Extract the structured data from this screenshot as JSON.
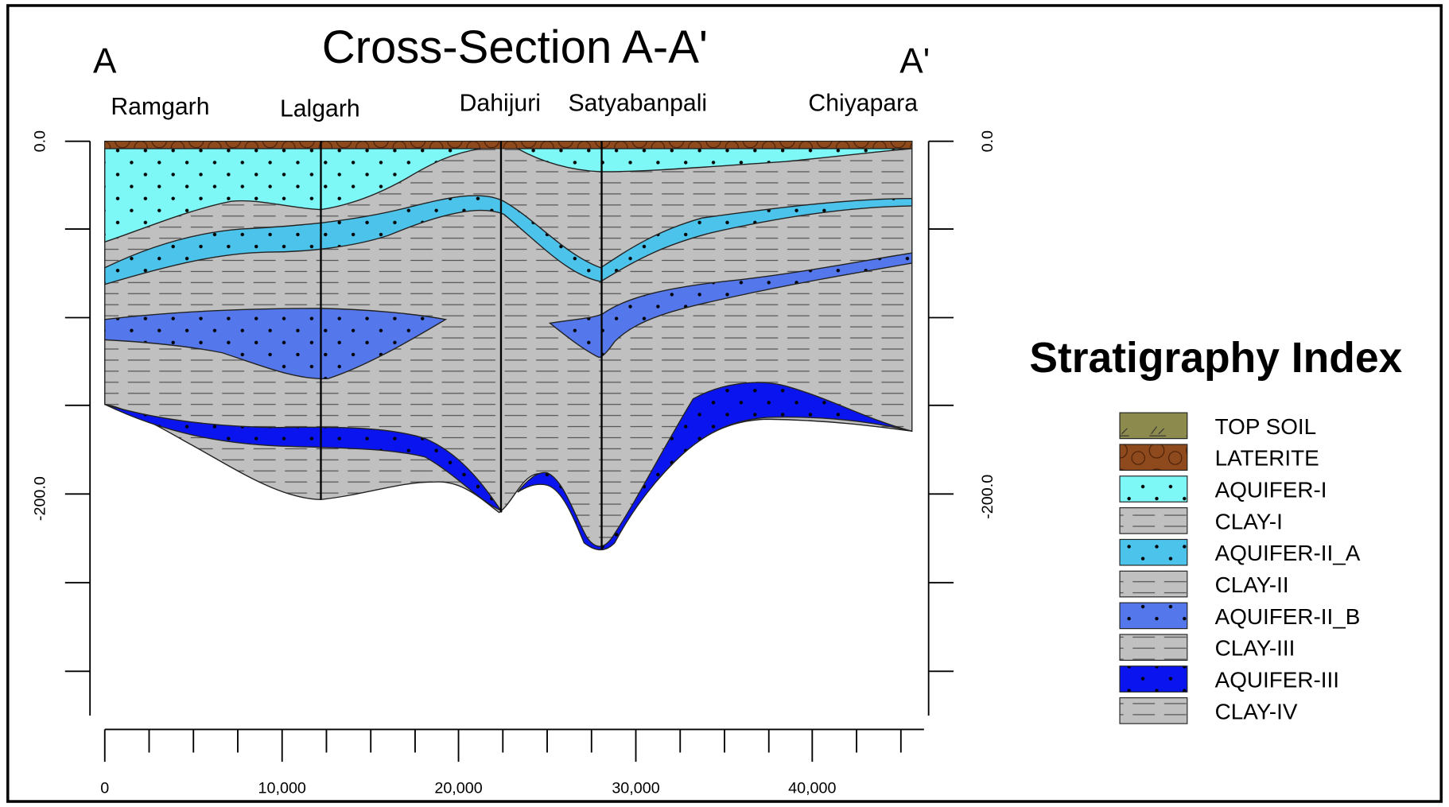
{
  "title": "Cross-Section A-A'",
  "section_ends": {
    "start": "A",
    "end": "A'"
  },
  "wells": [
    "Ramgarh",
    "Lalgarh",
    "Dahijuri",
    "Satyabanpali",
    "Chiyapara"
  ],
  "left_axis": {
    "ticks": [
      "0.0",
      "-200.0"
    ]
  },
  "right_axis": {
    "ticks": [
      "0.0",
      "-200.0"
    ]
  },
  "bottom_axis": {
    "ticks": [
      "0",
      "10,000",
      "20,000",
      "30,000",
      "40,000"
    ]
  },
  "legend": {
    "title": "Stratigraphy Index",
    "items": [
      "TOP SOIL",
      "LATERITE",
      "AQUIFER-I",
      "CLAY-I",
      "AQUIFER-II_A",
      "CLAY-II",
      "AQUIFER-II_B",
      "CLAY-III",
      "AQUIFER-III",
      "CLAY-IV"
    ]
  }
}
